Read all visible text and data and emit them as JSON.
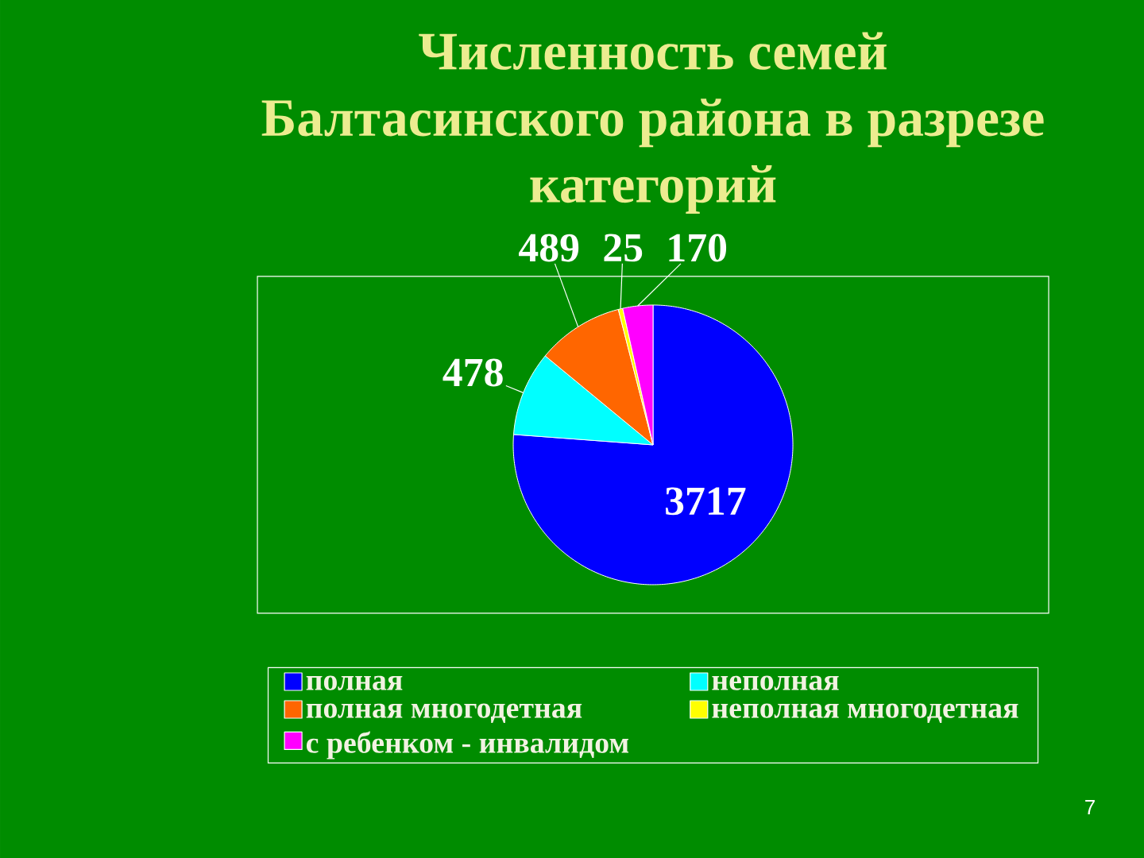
{
  "chart_data": {
    "type": "pie",
    "title": "Численность семей Балтасинского района в разрезе категорий",
    "categories": [
      "полная",
      "неполная",
      "полная многодетная",
      "неполная многодетная",
      "с ребенком - инвалидом"
    ],
    "values": [
      3717,
      478,
      489,
      25,
      170
    ],
    "colors": [
      "#0000ff",
      "#00ffff",
      "#ff6600",
      "#ffff00",
      "#ff00ff"
    ],
    "data_labels": true,
    "legend": "bottom",
    "annotations": [
      "7"
    ]
  }
}
